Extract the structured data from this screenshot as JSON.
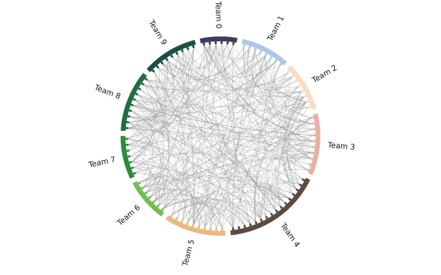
{
  "diagram": {
    "type": "circular-network",
    "teams": [
      {
        "label": "Team 0",
        "color": "#3b3f5c",
        "nodes": 6
      },
      {
        "label": "Team 1",
        "color": "#aec7e8",
        "nodes": 8
      },
      {
        "label": "Team 2",
        "color": "#f7dcc6",
        "nodes": 8
      },
      {
        "label": "Team 3",
        "color": "#e6b2a6",
        "nodes": 10
      },
      {
        "label": "Team 4",
        "color": "#5d4a40",
        "nodes": 16
      },
      {
        "label": "Team 5",
        "color": "#e8b982",
        "nodes": 10
      },
      {
        "label": "Team 6",
        "color": "#74bd55",
        "nodes": 7
      },
      {
        "label": "Team 7",
        "color": "#2e8b3e",
        "nodes": 7
      },
      {
        "label": "Team 8",
        "color": "#246b40",
        "nodes": 10
      },
      {
        "label": "Team 9",
        "color": "#1d4f47",
        "nodes": 9
      }
    ],
    "edge_color": "#9a9a9a"
  }
}
